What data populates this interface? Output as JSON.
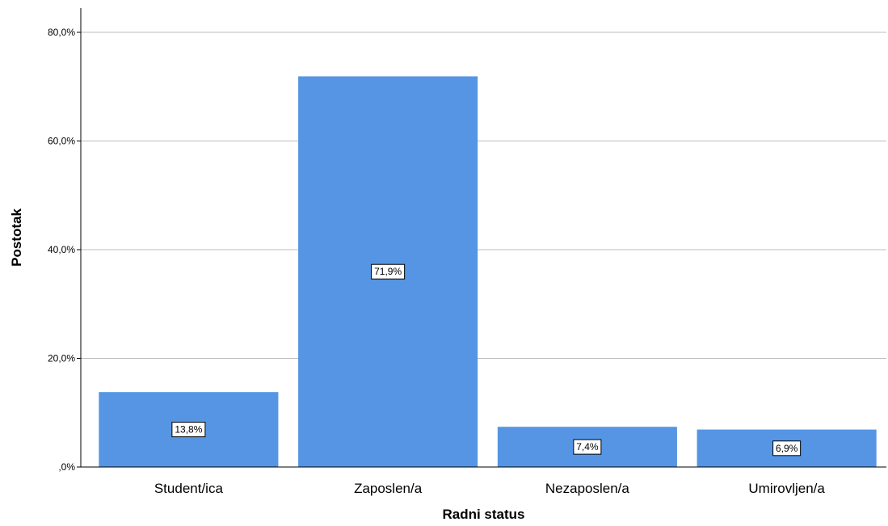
{
  "chart_data": {
    "type": "bar",
    "categories": [
      "Student/ica",
      "Zaposlen/a",
      "Nezaposlen/a",
      "Umirovljen/a"
    ],
    "values": [
      13.8,
      71.9,
      7.4,
      6.9
    ],
    "data_labels": [
      "13,8%",
      "71,9%",
      "7,4%",
      "6,9%"
    ],
    "xlabel": "Radni status",
    "ylabel": "Postotak",
    "ylim": [
      0,
      80
    ],
    "yticks": [
      0,
      20,
      40,
      60,
      80
    ],
    "ytick_labels": [
      ",0%",
      "20,0%",
      "40,0%",
      "60,0%",
      "80,0%"
    ],
    "grid": true,
    "bar_color": "#5595e4",
    "gridline_color": "#bcbcbc"
  }
}
